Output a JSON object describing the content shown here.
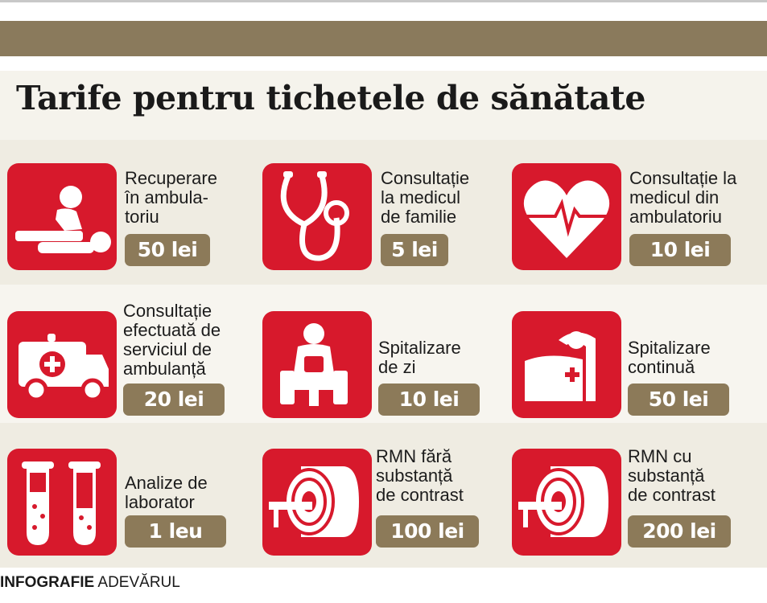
{
  "title": "Tarife pentru tichetele de sănătate",
  "colors": {
    "tile": "#d7192c",
    "price_badge": "#8c7a59",
    "header_band": "#8a7a5c"
  },
  "items": [
    {
      "label": [
        "Recuperare",
        "în ambula-",
        "toriu"
      ],
      "price": "50 lei",
      "icon": "physiotherapy-icon"
    },
    {
      "label": [
        "Consultație",
        "la medicul",
        "de familie"
      ],
      "price": "5 lei",
      "icon": "stethoscope-icon"
    },
    {
      "label": [
        "Consultație la",
        "medicul din",
        "ambulatoriu"
      ],
      "price": "10 lei",
      "icon": "heart-pulse-icon"
    },
    {
      "label": [
        "Consultație",
        "efectuată de",
        "serviciul de",
        "ambulanță"
      ],
      "price": "20 lei",
      "icon": "ambulance-icon"
    },
    {
      "label": [
        "Spitalizare",
        "de zi"
      ],
      "price": "10 lei",
      "icon": "patient-chair-icon"
    },
    {
      "label": [
        "Spitalizare",
        "continuă"
      ],
      "price": "50 lei",
      "icon": "hospital-bed-icon"
    },
    {
      "label": [
        "Analize de",
        "laborator"
      ],
      "price": "1 leu",
      "icon": "test-tubes-icon"
    },
    {
      "label": [
        "RMN fără",
        "substanță",
        "de contrast"
      ],
      "price": "100 lei",
      "icon": "mri-scanner-icon"
    },
    {
      "label": [
        "RMN cu",
        "substanță",
        "de contrast"
      ],
      "price": "200 lei",
      "icon": "mri-scanner-icon"
    }
  ],
  "credit": {
    "bold": "INFOGRAFIE",
    "normal": "ADEVĂRUL"
  }
}
